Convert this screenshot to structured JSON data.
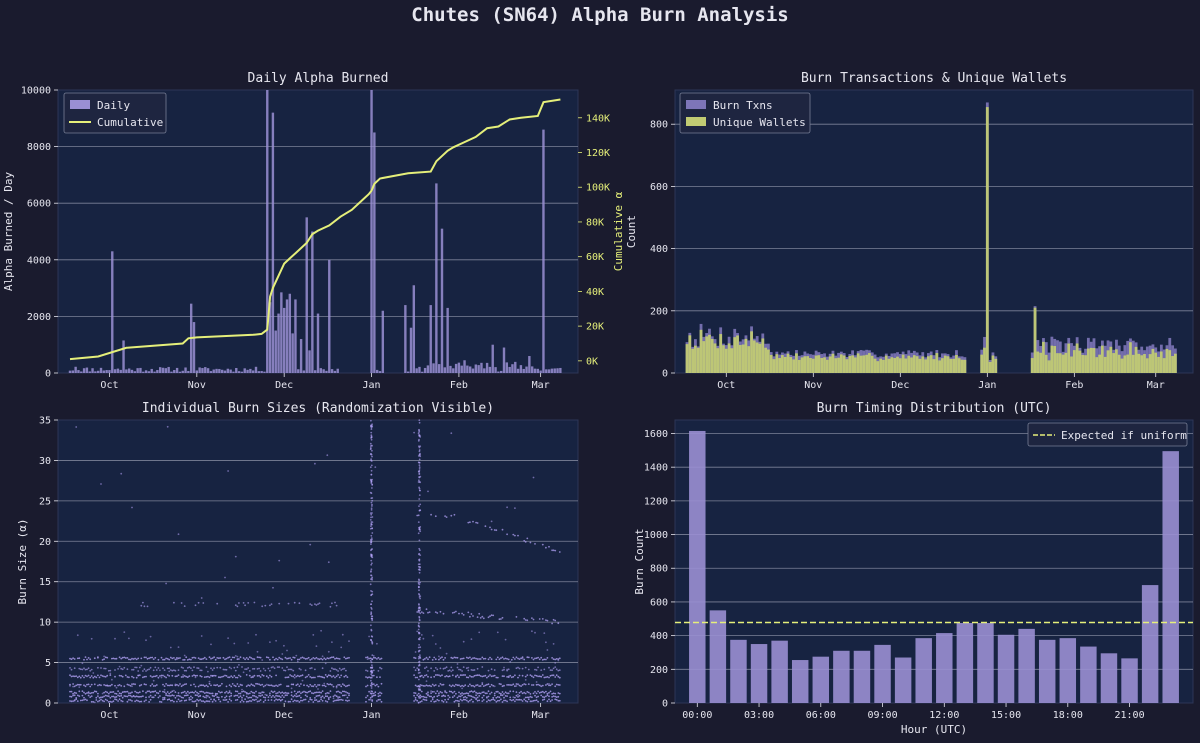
{
  "page_title": "Chutes (SN64) Alpha Burn Analysis",
  "colors": {
    "background": "#1a1b2e",
    "panel": "#172341",
    "grid": "#8e93a8",
    "bar_purple": "#9a8fd3",
    "scatter_purple": "#b9a8ff",
    "yellow": "#e5ef7a",
    "olive": "#c1cb73",
    "text": "#e6e6ef"
  },
  "chart_data": [
    {
      "id": "daily",
      "type": "bar",
      "title": "Daily Alpha Burned",
      "ylabel": "Alpha Burned / Day",
      "ylabel_right": "Cumulative α",
      "ylim": [
        0,
        10000
      ],
      "yticks": [
        0,
        2000,
        4000,
        6000,
        8000,
        10000
      ],
      "y2lim": [
        -7000,
        156000
      ],
      "y2ticks": [
        0,
        20000,
        40000,
        60000,
        80000,
        100000,
        120000,
        140000
      ],
      "y2tick_labels": [
        "0K",
        "20K",
        "40K",
        "60K",
        "80K",
        "100K",
        "120K",
        "140K"
      ],
      "xlim": [
        0,
        176
      ],
      "x_ticks": [
        {
          "x": 14,
          "label": "Oct"
        },
        {
          "x": 45,
          "label": "Nov"
        },
        {
          "x": 76,
          "label": "Dec"
        },
        {
          "x": 107,
          "label": "Jan"
        },
        {
          "x": 138,
          "label": "Feb"
        },
        {
          "x": 167,
          "label": "Mar"
        }
      ],
      "legend": [
        "Daily",
        "Cumulative"
      ],
      "spikes": [
        [
          2,
          220
        ],
        [
          15,
          4300
        ],
        [
          19,
          1150
        ],
        [
          43,
          2450
        ],
        [
          44,
          1800
        ],
        [
          70,
          10100
        ],
        [
          71,
          2500
        ],
        [
          72,
          9200
        ],
        [
          73,
          1500
        ],
        [
          74,
          2100
        ],
        [
          75,
          2850
        ],
        [
          76,
          2300
        ],
        [
          77,
          2600
        ],
        [
          78,
          2800
        ],
        [
          79,
          1400
        ],
        [
          80,
          2600
        ],
        [
          82,
          1200
        ],
        [
          84,
          5500
        ],
        [
          85,
          800
        ],
        [
          86,
          5000
        ],
        [
          88,
          2100
        ],
        [
          92,
          4000
        ],
        [
          107,
          10100
        ],
        [
          108,
          8500
        ],
        [
          111,
          2200
        ],
        [
          119,
          2400
        ],
        [
          121,
          1600
        ],
        [
          122,
          3100
        ],
        [
          128,
          2400
        ],
        [
          130,
          6700
        ],
        [
          132,
          5100
        ],
        [
          134,
          2300
        ],
        [
          140,
          450
        ],
        [
          150,
          1000
        ],
        [
          154,
          900
        ],
        [
          163,
          600
        ],
        [
          168,
          8600
        ]
      ],
      "cumulative": [
        [
          0,
          1000
        ],
        [
          10,
          2500
        ],
        [
          20,
          7500
        ],
        [
          40,
          10000
        ],
        [
          42,
          13000
        ],
        [
          45,
          13500
        ],
        [
          65,
          15000
        ],
        [
          68,
          15500
        ],
        [
          70,
          18000
        ],
        [
          71,
          37000
        ],
        [
          72,
          42000
        ],
        [
          76,
          56000
        ],
        [
          78,
          59000
        ],
        [
          80,
          62000
        ],
        [
          84,
          68000
        ],
        [
          86,
          73000
        ],
        [
          88,
          75000
        ],
        [
          92,
          78000
        ],
        [
          96,
          83000
        ],
        [
          100,
          87000
        ],
        [
          104,
          93000
        ],
        [
          106,
          96000
        ],
        [
          107,
          98000
        ],
        [
          108,
          102000
        ],
        [
          110,
          105000
        ],
        [
          120,
          108000
        ],
        [
          128,
          109000
        ],
        [
          130,
          115000
        ],
        [
          134,
          121000
        ],
        [
          136,
          123000
        ],
        [
          140,
          126000
        ],
        [
          144,
          129000
        ],
        [
          148,
          134000
        ],
        [
          152,
          135000
        ],
        [
          156,
          139000
        ],
        [
          160,
          140000
        ],
        [
          166,
          141000
        ],
        [
          168,
          149000
        ],
        [
          174,
          150500
        ]
      ]
    },
    {
      "id": "txns",
      "type": "bar",
      "title": "Burn Transactions & Unique Wallets",
      "ylabel": "Count",
      "ylim": [
        0,
        910
      ],
      "yticks": [
        0,
        200,
        400,
        600,
        800
      ],
      "xlim": [
        0,
        176
      ],
      "x_ticks": [
        {
          "x": 14,
          "label": "Oct"
        },
        {
          "x": 45,
          "label": "Nov"
        },
        {
          "x": 76,
          "label": "Dec"
        },
        {
          "x": 107,
          "label": "Jan"
        },
        {
          "x": 138,
          "label": "Feb"
        },
        {
          "x": 167,
          "label": "Mar"
        }
      ],
      "legend": [
        "Burn Txns",
        "Unique Wallets"
      ],
      "spikes": [
        [
          107,
          870,
          855
        ],
        [
          124,
          215,
          210
        ]
      ],
      "gaps": [
        [
          100,
          104
        ],
        [
          111,
          122
        ]
      ]
    },
    {
      "id": "sizes",
      "type": "scatter",
      "title": "Individual Burn Sizes (Randomization Visible)",
      "ylabel": "Burn Size (α)",
      "ylim": [
        0,
        35
      ],
      "yticks": [
        0,
        5,
        10,
        15,
        20,
        25,
        30,
        35
      ],
      "xlim": [
        0,
        176
      ],
      "x_ticks": [
        {
          "x": 14,
          "label": "Oct"
        },
        {
          "x": 45,
          "label": "Nov"
        },
        {
          "x": 76,
          "label": "Dec"
        },
        {
          "x": 107,
          "label": "Jan"
        },
        {
          "x": 138,
          "label": "Feb"
        },
        {
          "x": 167,
          "label": "Mar"
        }
      ]
    },
    {
      "id": "timing",
      "type": "bar",
      "title": "Burn Timing Distribution (UTC)",
      "xlabel": "Hour (UTC)",
      "ylabel": "Burn Count",
      "ylim": [
        0,
        1680
      ],
      "yticks": [
        0,
        200,
        400,
        600,
        800,
        1000,
        1200,
        1400,
        1600
      ],
      "categories": [
        0,
        1,
        2,
        3,
        4,
        5,
        6,
        7,
        8,
        9,
        10,
        11,
        12,
        13,
        14,
        15,
        16,
        17,
        18,
        19,
        20,
        21,
        22,
        23
      ],
      "x_tick_labels": [
        {
          "hour": 0,
          "label": "00:00"
        },
        {
          "hour": 3,
          "label": "03:00"
        },
        {
          "hour": 6,
          "label": "06:00"
        },
        {
          "hour": 9,
          "label": "09:00"
        },
        {
          "hour": 12,
          "label": "12:00"
        },
        {
          "hour": 15,
          "label": "15:00"
        },
        {
          "hour": 18,
          "label": "18:00"
        },
        {
          "hour": 21,
          "label": "21:00"
        }
      ],
      "values": [
        1615,
        550,
        375,
        350,
        370,
        255,
        275,
        310,
        310,
        345,
        270,
        385,
        415,
        475,
        475,
        405,
        440,
        375,
        385,
        335,
        295,
        265,
        700,
        1495
      ],
      "expected": 478,
      "legend": [
        "Expected if uniform"
      ]
    }
  ]
}
